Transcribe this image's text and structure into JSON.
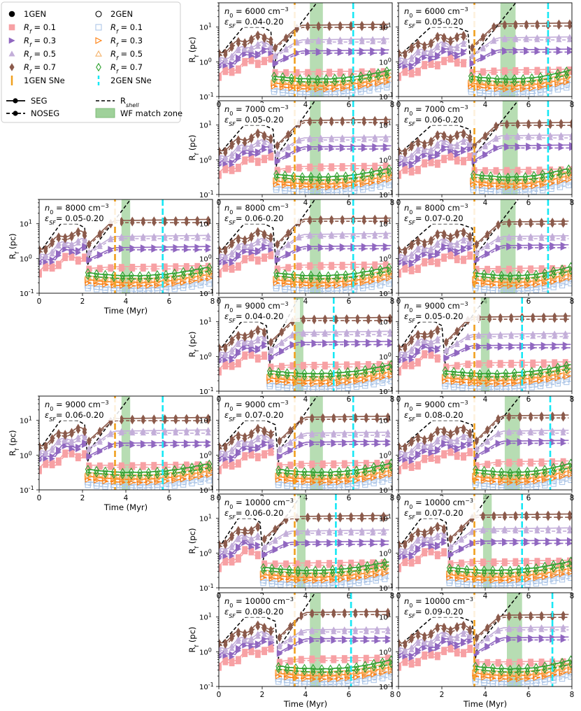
{
  "legend": {
    "col1": [
      {
        "marker": "filled-circle",
        "color": "#000000",
        "label": "1GEN"
      },
      {
        "marker": "filled-square",
        "color": "#f7a1a4",
        "label": "R_f = 0.1"
      },
      {
        "marker": "filled-triangle-right",
        "color": "#9067c0",
        "label": "R_f = 0.3"
      },
      {
        "marker": "filled-triangle-up",
        "color": "#c3aed9",
        "label": "R_f = 0.5"
      },
      {
        "marker": "filled-diamond",
        "color": "#8b5a4b",
        "label": "R_f = 0.7"
      },
      {
        "marker": "vline",
        "color": "#f0a01e",
        "label": "1GEN SNe"
      }
    ],
    "col2": [
      {
        "marker": "open-circle",
        "color": "#000000",
        "label": "2GEN"
      },
      {
        "marker": "open-square",
        "color": "#aec7e8",
        "label": "R_f = 0.1"
      },
      {
        "marker": "open-triangle-right",
        "color": "#ff7f0e",
        "label": "R_f = 0.3"
      },
      {
        "marker": "open-triangle-up",
        "color": "#f5b36b",
        "label": "R_f = 0.5"
      },
      {
        "marker": "open-diamond",
        "color": "#2ca02c",
        "label": "R_f = 0.7"
      },
      {
        "marker": "vline-dashed",
        "color": "#17e8f5",
        "label": "2GEN SNe"
      }
    ],
    "lines": [
      {
        "style": "solid",
        "label": "SEG"
      },
      {
        "style": "dashed",
        "label": "R_shell"
      },
      {
        "style": "dashed-marker",
        "label": "NOSEG"
      },
      {
        "style": "band",
        "color": "#9fd19a",
        "label": "WF match zone"
      }
    ]
  },
  "axes_labels": {
    "xlabel": "Time (Myr)",
    "ylabel": "R_f (pc)"
  },
  "colors": {
    "rf01": "#f7a1a4",
    "rf03": "#9067c0",
    "rf05": "#c3aed9",
    "rf07": "#8b5a4b",
    "g2_01": "#aec7e8",
    "g2_03": "#ff7f0e",
    "g2_05": "#f5b36b",
    "g2_07": "#2ca02c",
    "sn1": "#f0a01e",
    "sn2": "#17e8f5",
    "shell": "#000000",
    "band": "#9fd19a"
  },
  "chart_data": [
    {
      "type": "line",
      "row": 0,
      "col": 1,
      "n0": "6000",
      "eps": "0.04-0.20",
      "t_gap": 2.5,
      "sn1": 3.5,
      "sn2": 6.2,
      "band": [
        4.2,
        4.8
      ],
      "shell_end": 4.7,
      "xlim": [
        0,
        8
      ],
      "ylim": [
        0.1,
        50
      ],
      "xticks": [
        0,
        2,
        4,
        6,
        8
      ],
      "yticks": [
        0.1,
        1,
        10
      ],
      "ytick_labels": [
        "10^-1",
        "10^0",
        "10^1"
      ],
      "xlabel": "",
      "ylabel": "R_f (pc)"
    },
    {
      "type": "line",
      "row": 0,
      "col": 2,
      "n0": "6000",
      "eps": "0.05-0.20",
      "t_gap": 3.3,
      "sn1": 3.5,
      "sn2": 6.9,
      "band": [
        4.7,
        5.4
      ],
      "shell_end": 5.6,
      "xlim": [
        0,
        8
      ],
      "ylim": [
        0.1,
        50
      ],
      "xticks": [
        0,
        2,
        4,
        6,
        8
      ],
      "yticks": [
        0.1,
        1,
        10
      ],
      "ytick_labels": [
        "10^-1",
        "10^0",
        "10^1"
      ],
      "xlabel": "",
      "ylabel": ""
    },
    {
      "type": "line",
      "row": 1,
      "col": 1,
      "n0": "7000",
      "eps": "0.05-0.20",
      "t_gap": 2.6,
      "sn1": 3.5,
      "sn2": 6.2,
      "band": [
        4.2,
        4.7
      ],
      "shell_end": 4.6,
      "xlim": [
        0,
        8
      ],
      "ylim": [
        0.1,
        50
      ],
      "xticks": [
        0,
        2,
        4,
        6,
        8
      ],
      "yticks": [
        0.1,
        1,
        10
      ],
      "ytick_labels": [
        "10^-1",
        "10^0",
        "10^1"
      ],
      "xlabel": "",
      "ylabel": "R_f (pc)"
    },
    {
      "type": "line",
      "row": 1,
      "col": 2,
      "n0": "7000",
      "eps": "0.06-0.20",
      "t_gap": 3.4,
      "sn1": 3.5,
      "sn2": 6.9,
      "band": [
        4.8,
        5.5
      ],
      "shell_end": 5.7,
      "xlim": [
        0,
        8
      ],
      "ylim": [
        0.1,
        50
      ],
      "xticks": [
        0,
        2,
        4,
        6,
        8
      ],
      "yticks": [
        0.1,
        1,
        10
      ],
      "ytick_labels": [
        "10^-1",
        "10^0",
        "10^1"
      ],
      "xlabel": "",
      "ylabel": ""
    },
    {
      "type": "line",
      "row": 2,
      "col": 0,
      "n0": "8000",
      "eps": "0.05-0.20",
      "t_gap": 2.2,
      "sn1": 3.5,
      "sn2": 5.7,
      "band": [
        3.8,
        4.2
      ],
      "shell_end": 4.4,
      "xlim": [
        0,
        8
      ],
      "ylim": [
        0.1,
        50
      ],
      "xticks": [
        0,
        2,
        4,
        6,
        8
      ],
      "yticks": [
        0.1,
        1,
        10
      ],
      "ytick_labels": [
        "10^-1",
        "10^0",
        "10^1"
      ],
      "xlabel": "Time (Myr)",
      "ylabel": "R_f (pc)"
    },
    {
      "type": "line",
      "row": 2,
      "col": 1,
      "n0": "8000",
      "eps": "0.06-0.20",
      "t_gap": 2.6,
      "sn1": 3.5,
      "sn2": 6.2,
      "band": [
        4.2,
        4.7
      ],
      "shell_end": 4.6,
      "xlim": [
        0,
        8
      ],
      "ylim": [
        0.1,
        50
      ],
      "xticks": [
        0,
        2,
        4,
        6,
        8
      ],
      "yticks": [
        0.1,
        1,
        10
      ],
      "ytick_labels": [
        "10^-1",
        "10^0",
        "10^1"
      ],
      "xlabel": "",
      "ylabel": ""
    },
    {
      "type": "line",
      "row": 2,
      "col": 2,
      "n0": "8000",
      "eps": "0.07-0.20",
      "t_gap": 3.5,
      "sn1": 3.5,
      "sn2": 6.9,
      "band": [
        4.7,
        5.4
      ],
      "shell_end": 5.7,
      "xlim": [
        0,
        8
      ],
      "ylim": [
        0.1,
        50
      ],
      "xticks": [
        0,
        2,
        4,
        6,
        8
      ],
      "yticks": [
        0.1,
        1,
        10
      ],
      "ytick_labels": [
        "10^-1",
        "10^0",
        "10^1"
      ],
      "xlabel": "",
      "ylabel": ""
    },
    {
      "type": "line",
      "row": 3,
      "col": 1,
      "n0": "9000",
      "eps": "0.04-0.20",
      "t_gap": 2.3,
      "sn1": 3.5,
      "sn2": 5.3,
      "band": [
        3.5,
        3.9
      ],
      "shell_end": 3.8,
      "xlim": [
        0,
        8
      ],
      "ylim": [
        0.1,
        50
      ],
      "xticks": [
        0,
        2,
        4,
        6,
        8
      ],
      "yticks": [
        0.1,
        1,
        10
      ],
      "ytick_labels": [
        "10^-1",
        "10^0",
        "10^1"
      ],
      "xlabel": "",
      "ylabel": "R_f (pc)"
    },
    {
      "type": "line",
      "row": 3,
      "col": 2,
      "n0": "9000",
      "eps": "0.05-0.20",
      "t_gap": 2.1,
      "sn1": 3.5,
      "sn2": 5.7,
      "band": [
        3.8,
        4.2
      ],
      "shell_end": 4.2,
      "xlim": [
        0,
        8
      ],
      "ylim": [
        0.1,
        50
      ],
      "xticks": [
        0,
        2,
        4,
        6,
        8
      ],
      "yticks": [
        0.1,
        1,
        10
      ],
      "ytick_labels": [
        "10^-1",
        "10^0",
        "10^1"
      ],
      "xlabel": "",
      "ylabel": ""
    },
    {
      "type": "line",
      "row": 4,
      "col": 0,
      "n0": "9000",
      "eps": "0.06-0.20",
      "t_gap": 2.2,
      "sn1": 3.5,
      "sn2": 5.7,
      "band": [
        3.8,
        4.2
      ],
      "shell_end": 4.4,
      "xlim": [
        0,
        8
      ],
      "ylim": [
        0.1,
        50
      ],
      "xticks": [
        0,
        2,
        4,
        6,
        8
      ],
      "yticks": [
        0.1,
        1,
        10
      ],
      "ytick_labels": [
        "10^-1",
        "10^0",
        "10^1"
      ],
      "xlabel": "Time (Myr)",
      "ylabel": "R_f (pc)"
    },
    {
      "type": "line",
      "row": 4,
      "col": 1,
      "n0": "9000",
      "eps": "0.07-0.20",
      "t_gap": 2.7,
      "sn1": 3.5,
      "sn2": 6.2,
      "band": [
        4.2,
        4.8
      ],
      "shell_end": 4.7,
      "xlim": [
        0,
        8
      ],
      "ylim": [
        0.1,
        50
      ],
      "xticks": [
        0,
        2,
        4,
        6,
        8
      ],
      "yticks": [
        0.1,
        1,
        10
      ],
      "ytick_labels": [
        "10^-1",
        "10^0",
        "10^1"
      ],
      "xlabel": "",
      "ylabel": ""
    },
    {
      "type": "line",
      "row": 4,
      "col": 2,
      "n0": "9000",
      "eps": "0.08-0.20",
      "t_gap": 3.5,
      "sn1": 3.5,
      "sn2": 7.0,
      "band": [
        4.9,
        5.6
      ],
      "shell_end": 5.8,
      "xlim": [
        0,
        8
      ],
      "ylim": [
        0.1,
        50
      ],
      "xticks": [
        0,
        2,
        4,
        6,
        8
      ],
      "yticks": [
        0.1,
        1,
        10
      ],
      "ytick_labels": [
        "10^-1",
        "10^0",
        "10^1"
      ],
      "xlabel": "",
      "ylabel": ""
    },
    {
      "type": "line",
      "row": 5,
      "col": 1,
      "n0": "10000",
      "eps": "0.06-0.20",
      "t_gap": 2.0,
      "sn1": 3.5,
      "sn2": 5.4,
      "band": [
        3.6,
        4.0
      ],
      "shell_end": 4.0,
      "xlim": [
        0,
        8
      ],
      "ylim": [
        0.1,
        50
      ],
      "xticks": [
        0,
        2,
        4,
        6,
        8
      ],
      "yticks": [
        0.1,
        1,
        10
      ],
      "ytick_labels": [
        "10^-1",
        "10^0",
        "10^1"
      ],
      "xlabel": "",
      "ylabel": "R_f (pc)"
    },
    {
      "type": "line",
      "row": 5,
      "col": 2,
      "n0": "10000",
      "eps": "0.07-0.20",
      "t_gap": 2.3,
      "sn1": 3.5,
      "sn2": 5.7,
      "band": [
        3.9,
        4.3
      ],
      "shell_end": 4.4,
      "xlim": [
        0,
        8
      ],
      "ylim": [
        0.1,
        50
      ],
      "xticks": [
        0,
        2,
        4,
        6,
        8
      ],
      "yticks": [
        0.1,
        1,
        10
      ],
      "ytick_labels": [
        "10^-1",
        "10^0",
        "10^1"
      ],
      "xlabel": "",
      "ylabel": ""
    },
    {
      "type": "line",
      "row": 6,
      "col": 1,
      "n0": "10000",
      "eps": "0.08-0.20",
      "t_gap": 2.7,
      "sn1": 3.5,
      "sn2": 6.1,
      "band": [
        4.2,
        4.7
      ],
      "shell_end": 4.6,
      "xlim": [
        0,
        8
      ],
      "ylim": [
        0.1,
        50
      ],
      "xticks": [
        0,
        2,
        4,
        6,
        8
      ],
      "yticks": [
        0.1,
        1,
        10
      ],
      "ytick_labels": [
        "10^-1",
        "10^0",
        "10^1"
      ],
      "xlabel": "Time (Myr)",
      "ylabel": "R_f (pc)"
    },
    {
      "type": "line",
      "row": 6,
      "col": 2,
      "n0": "10000",
      "eps": "0.09-0.20",
      "t_gap": 3.5,
      "sn1": 3.5,
      "sn2": 7.1,
      "band": [
        5.0,
        5.7
      ],
      "shell_end": 5.8,
      "xlim": [
        0,
        8
      ],
      "ylim": [
        0.1,
        50
      ],
      "xticks": [
        0,
        2,
        4,
        6,
        8
      ],
      "yticks": [
        0.1,
        1,
        10
      ],
      "ytick_labels": [
        "10^-1",
        "10^0",
        "10^1"
      ],
      "xlabel": "Time (Myr)",
      "ylabel": ""
    }
  ]
}
